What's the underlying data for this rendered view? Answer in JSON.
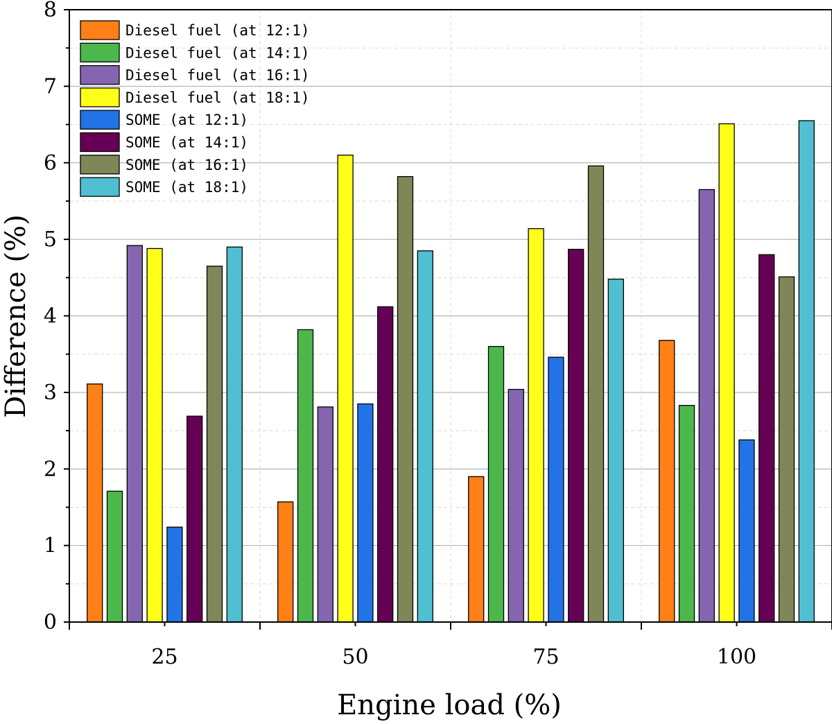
{
  "chart_data": {
    "type": "bar",
    "title": "",
    "xlabel": "Engine load (%)",
    "ylabel": "Difference (%)",
    "categories": [
      "25",
      "50",
      "75",
      "100"
    ],
    "ylim": [
      0,
      8
    ],
    "yticks": [
      0,
      1,
      2,
      3,
      4,
      5,
      6,
      7,
      8
    ],
    "grid": true,
    "legend_position": "top-left",
    "series": [
      {
        "name": "Diesel fuel (at 12:1)",
        "color": "#ff8017",
        "values": [
          3.11,
          1.57,
          1.9,
          3.68
        ]
      },
      {
        "name": "Diesel fuel (at 14:1)",
        "color": "#4cb84c",
        "values": [
          1.71,
          3.82,
          3.6,
          2.83
        ]
      },
      {
        "name": "Diesel fuel (at 16:1)",
        "color": "#8565b0",
        "values": [
          4.92,
          2.81,
          3.04,
          5.65
        ]
      },
      {
        "name": "Diesel fuel (at 18:1)",
        "color": "#ffff1a",
        "values": [
          4.88,
          6.1,
          5.14,
          6.51
        ]
      },
      {
        "name": "SOME (at 12:1)",
        "color": "#2273e6",
        "values": [
          1.24,
          2.85,
          3.46,
          2.38
        ]
      },
      {
        "name": "SOME (at 14:1)",
        "color": "#660055",
        "values": [
          2.69,
          4.12,
          4.87,
          4.8
        ]
      },
      {
        "name": "SOME (at 16:1)",
        "color": "#7f8657",
        "values": [
          4.65,
          5.82,
          5.96,
          4.51
        ]
      },
      {
        "name": "SOME (at 18:1)",
        "color": "#4fbfd1",
        "values": [
          4.9,
          4.85,
          4.48,
          6.55
        ]
      }
    ]
  }
}
